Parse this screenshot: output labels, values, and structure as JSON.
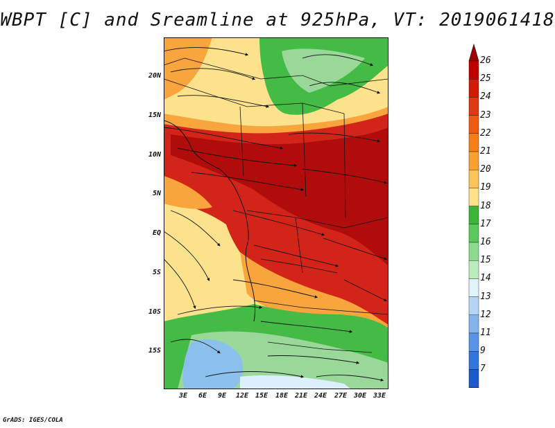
{
  "title": "WBPT [C] and Sreamline at 925hPa, VT: 2019061418",
  "credit": "GrADS: IGES/COLA",
  "map": {
    "field": "Wet-bulb potential temperature (C)",
    "level": "925hPa",
    "valid_time": "2019061418",
    "lon_labels": [
      "3E",
      "6E",
      "9E",
      "12E",
      "15E",
      "18E",
      "21E",
      "24E",
      "27E",
      "30E",
      "33E"
    ],
    "lat_labels": [
      "20N",
      "15N",
      "10N",
      "5N",
      "EQ",
      "5S",
      "10S",
      "15S"
    ]
  },
  "colorbar": {
    "labels": [
      "26",
      "25",
      "24",
      "23",
      "22",
      "21",
      "20",
      "19",
      "18",
      "17",
      "16",
      "15",
      "14",
      "13",
      "12",
      "11",
      "9",
      "7"
    ],
    "colors": [
      "#c00000",
      "#d01a0a",
      "#e03a14",
      "#ec5a14",
      "#f67d18",
      "#f9a030",
      "#fbc35a",
      "#fde28e",
      "#3cb43c",
      "#5cc85c",
      "#8cdc8c",
      "#bcecbc",
      "#e2f4fa",
      "#b4d6f4",
      "#84b4ec",
      "#5a94e4",
      "#3276dc",
      "#1c5acc"
    ],
    "upper_arrow_color": "#a00000",
    "lower_arrow_color": "#1446b4"
  },
  "palette": {
    "green": "#44bb44",
    "light_green": "#9ad89a",
    "yellow": "#fde28e",
    "orange": "#f7a53c",
    "red": "#d3241a",
    "dark_red": "#b00c0c",
    "blue": "#8cc0ec",
    "pale_blue": "#dcf0fb"
  }
}
